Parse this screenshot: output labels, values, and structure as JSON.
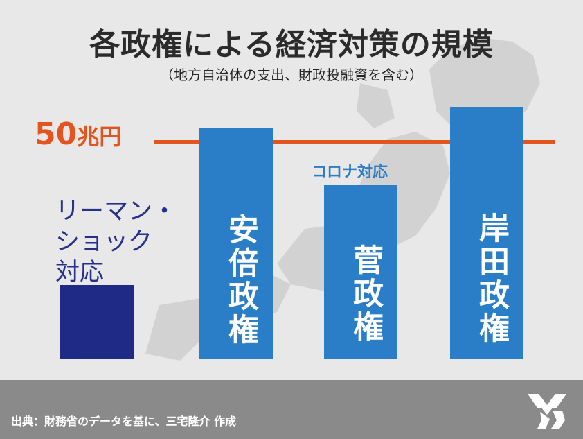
{
  "title": "各政権による経済対策の規模",
  "subtitle": "（地方自治体の支出、財政投融資を含む）",
  "reference": {
    "value": 50,
    "number_label": "50",
    "unit_label": "兆円",
    "color": "#e4541e"
  },
  "chart_data": {
    "type": "bar",
    "title": "各政権による経済対策の規模",
    "subtitle": "（地方自治体の支出、財政投融資を含む）",
    "xlabel": "",
    "ylabel": "",
    "unit": "兆円",
    "grid": false,
    "legend": "none",
    "ylim": [
      0,
      62
    ],
    "reference_line": {
      "value": 50,
      "label": "50兆円"
    },
    "categories": [
      "リーマン・\nショック\n対応",
      "安倍政権",
      "菅政権",
      "岸田政権"
    ],
    "values": [
      17,
      53,
      40,
      58
    ],
    "colors": [
      "#1e2a85",
      "#2a7ec8",
      "#2a7ec8",
      "#2a7ec8"
    ],
    "annotations": [
      {
        "category": "菅政権",
        "text": "コロナ対応"
      }
    ]
  },
  "footer": {
    "source": "出典：財務省のデータを基に、三宅隆介 作成",
    "logo_icon": "mr-logo-icon",
    "background": "#8a8a8a"
  }
}
